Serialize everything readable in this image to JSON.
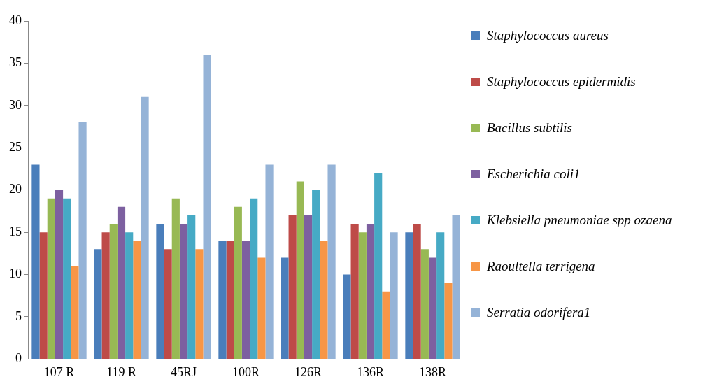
{
  "chart_data": {
    "type": "bar",
    "categories": [
      "107 R",
      "119 R",
      "45RJ",
      "100R",
      "126R",
      "136R",
      "138R"
    ],
    "series": [
      {
        "name": "Staphylococcus aureus",
        "color": "#4a7ebb",
        "values": [
          23,
          13,
          16,
          14,
          12,
          10,
          15
        ]
      },
      {
        "name": "Staphylococcus  epidermidis",
        "color": "#be4b48",
        "values": [
          15,
          15,
          13,
          14,
          17,
          16,
          16
        ]
      },
      {
        "name": "Bacillus subtilis",
        "color": "#98b954",
        "values": [
          19,
          16,
          19,
          18,
          21,
          15,
          13
        ]
      },
      {
        "name": "Escherichia coli1",
        "color": "#7d60a0",
        "values": [
          20,
          18,
          16,
          14,
          17,
          16,
          12
        ]
      },
      {
        "name": "Klebsiella pneumoniae spp ozaena",
        "color": "#46aac5",
        "values": [
          19,
          15,
          17,
          19,
          20,
          22,
          15
        ]
      },
      {
        "name": "Raoultella terrigena",
        "color": "#f79646",
        "values": [
          11,
          14,
          13,
          12,
          14,
          8,
          9
        ]
      },
      {
        "name": "Serratia odorifera1",
        "color": "#95b3d7",
        "values": [
          28,
          31,
          36,
          23,
          23,
          15,
          17
        ]
      }
    ],
    "ylim": [
      0,
      40
    ],
    "yticks": [
      0,
      5,
      10,
      15,
      20,
      25,
      30,
      35,
      40
    ],
    "grid": false,
    "legend": "right"
  }
}
